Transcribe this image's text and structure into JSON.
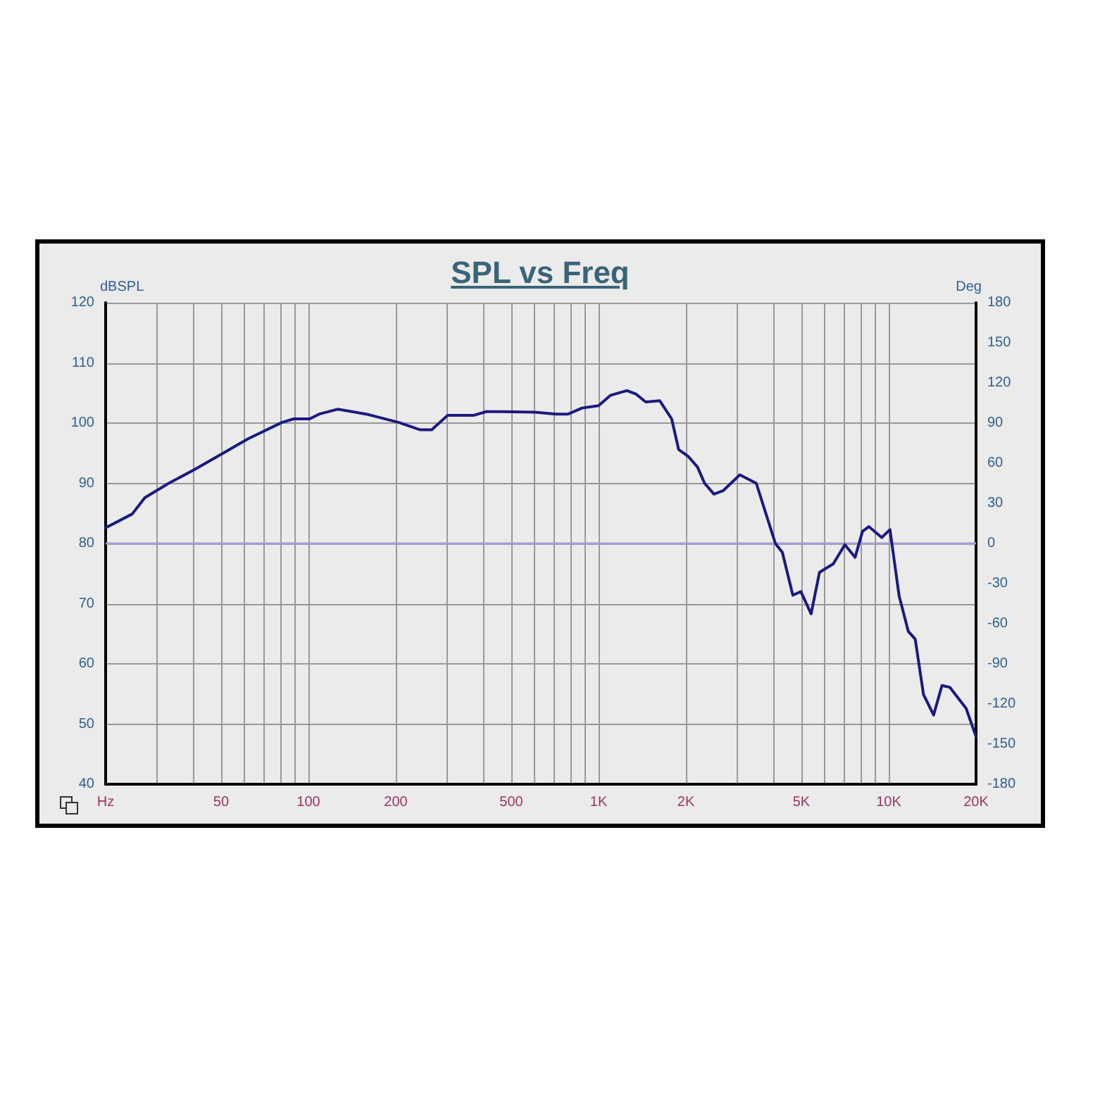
{
  "chart_data": {
    "type": "line",
    "title": "SPL vs Freq",
    "ylabel": "dBSPL",
    "y2label": "Deg",
    "series": [
      {
        "color": "#1a1a80",
        "x": [
          20,
          24.7,
          27.3,
          33,
          40.6,
          50.8,
          62,
          81,
          89,
          101,
          109,
          126,
          158,
          205,
          242,
          266,
          302,
          372,
          410,
          458,
          602,
          713,
          786,
          877,
          1000,
          1098,
          1252,
          1348,
          1454,
          1626,
          1786,
          1888,
          2034,
          2192,
          2320,
          2498,
          2692,
          3068,
          3496,
          4068,
          4300,
          4672,
          4980,
          5400,
          5772,
          6440,
          7060,
          7660,
          8120,
          8540,
          9460,
          10100,
          10860,
          11680,
          12340,
          13180,
          14280,
          15260,
          16240,
          18480,
          20000
        ],
        "values": [
          82.6,
          84.9,
          87.6,
          90.0,
          92.3,
          95.0,
          97.4,
          100.1,
          100.7,
          100.7,
          101.5,
          102.3,
          101.5,
          100.1,
          98.9,
          98.9,
          101.3,
          101.3,
          101.9,
          101.9,
          101.8,
          101.5,
          101.5,
          102.5,
          102.9,
          104.6,
          105.4,
          104.8,
          103.5,
          103.7,
          100.7,
          95.6,
          94.5,
          92.7,
          90.0,
          88.2,
          88.8,
          91.4,
          90.0,
          80.0,
          78.5,
          71.4,
          72.0,
          68.3,
          75.2,
          76.6,
          79.8,
          77.7,
          82.0,
          82.8,
          81.0,
          82.3,
          71.3,
          65.4,
          64.1,
          54.9,
          51.5,
          56.4,
          56.1,
          52.6,
          47.9
        ]
      }
    ],
    "log": "x",
    "xlim": [
      20,
      20000
    ],
    "xticks": [
      {
        "value": 20,
        "label": "Hz"
      },
      {
        "value": 30,
        "label": null
      },
      {
        "value": 40,
        "label": null
      },
      {
        "value": 50,
        "label": "50"
      },
      {
        "value": 60,
        "label": null
      },
      {
        "value": 70,
        "label": null
      },
      {
        "value": 80,
        "label": null
      },
      {
        "value": 90,
        "label": null
      },
      {
        "value": 100,
        "label": "100"
      },
      {
        "value": 200,
        "label": "200"
      },
      {
        "value": 300,
        "label": null
      },
      {
        "value": 400,
        "label": null
      },
      {
        "value": 500,
        "label": "500"
      },
      {
        "value": 600,
        "label": null
      },
      {
        "value": 700,
        "label": null
      },
      {
        "value": 800,
        "label": null
      },
      {
        "value": 900,
        "label": null
      },
      {
        "value": 1000,
        "label": "1K"
      },
      {
        "value": 2000,
        "label": "2K"
      },
      {
        "value": 3000,
        "label": null
      },
      {
        "value": 4000,
        "label": null
      },
      {
        "value": 5000,
        "label": "5K"
      },
      {
        "value": 6000,
        "label": null
      },
      {
        "value": 7000,
        "label": null
      },
      {
        "value": 8000,
        "label": null
      },
      {
        "value": 9000,
        "label": null
      },
      {
        "value": 10000,
        "label": "10K"
      },
      {
        "value": 20000,
        "label": "20K"
      }
    ],
    "ylim": [
      40,
      120
    ],
    "yticks": [
      40,
      50,
      60,
      70,
      80,
      90,
      100,
      110,
      120
    ],
    "y2lim": [
      -180,
      180
    ],
    "y2ticks": [
      -180,
      -150,
      -120,
      -90,
      -60,
      -30,
      0,
      30,
      60,
      90,
      120,
      150,
      180
    ],
    "ref_lines": [
      {
        "axis": "y2",
        "value": 0,
        "color": "#a0a0d0"
      }
    ],
    "grid": true,
    "marker": "none",
    "line_style": "solid"
  }
}
